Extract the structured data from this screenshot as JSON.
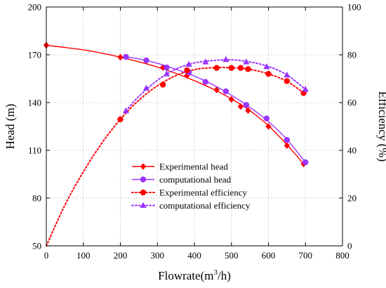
{
  "chart_data": {
    "type": "line",
    "xlabel_base": "Flowrate(m",
    "xlabel_sup": "3",
    "xlabel_tail": "/h)",
    "ylabel_left": "Head (m)",
    "ylabel_right": "Efficiency (%)",
    "xlim": [
      0,
      800
    ],
    "ylim_left": [
      50,
      200
    ],
    "ylim_right": [
      0,
      100
    ],
    "x_ticks": [
      "0",
      "100",
      "200",
      "300",
      "400",
      "500",
      "600",
      "700",
      "800"
    ],
    "y_left_ticks": [
      "50",
      "80",
      "110",
      "140",
      "170",
      "200"
    ],
    "y_right_ticks": [
      "0",
      "20",
      "40",
      "60",
      "80",
      "100"
    ],
    "grid": true,
    "legend_position": "center-bottom",
    "series": [
      {
        "name": "Experimental head",
        "axis": "left",
        "color": "#ff0000",
        "marker": "diamond",
        "line": "solid",
        "points": [
          [
            0,
            176
          ],
          [
            200,
            168.5
          ],
          [
            315,
            162
          ],
          [
            380,
            157
          ],
          [
            460,
            148
          ],
          [
            500,
            142
          ],
          [
            525,
            137.5
          ],
          [
            545,
            135
          ],
          [
            600,
            125
          ],
          [
            650,
            113
          ],
          [
            695,
            101.5
          ]
        ],
        "curve": [
          [
            0,
            176
          ],
          [
            50,
            174.6
          ],
          [
            100,
            173.1
          ],
          [
            150,
            171
          ],
          [
            200,
            168.5
          ],
          [
            250,
            165.6
          ],
          [
            300,
            162.3
          ],
          [
            350,
            158.3
          ],
          [
            400,
            153.7
          ],
          [
            450,
            148.5
          ],
          [
            500,
            142.3
          ],
          [
            550,
            134.9
          ],
          [
            600,
            125.5
          ],
          [
            650,
            113.5
          ],
          [
            695,
            101.5
          ]
        ]
      },
      {
        "name": "computational head",
        "axis": "left",
        "color": "#9933ff",
        "marker": "circle",
        "line": "solid",
        "points": [
          [
            215,
            168.7
          ],
          [
            270,
            166.5
          ],
          [
            325,
            162
          ],
          [
            385,
            159
          ],
          [
            430,
            153
          ],
          [
            485,
            147
          ],
          [
            540,
            138.5
          ],
          [
            595,
            130
          ],
          [
            650,
            116.5
          ],
          [
            700,
            102.5
          ]
        ],
        "curve": [
          [
            215,
            168.7
          ],
          [
            250,
            167.4
          ],
          [
            300,
            164.7
          ],
          [
            350,
            160.9
          ],
          [
            400,
            156.6
          ],
          [
            450,
            151.2
          ],
          [
            500,
            144.6
          ],
          [
            550,
            137
          ],
          [
            600,
            128.1
          ],
          [
            650,
            116.8
          ],
          [
            700,
            102.5
          ]
        ]
      },
      {
        "name": "Experimental efficiency",
        "axis": "right",
        "color": "#ff0000",
        "marker": "circle",
        "line": "dotted",
        "points": [
          [
            200,
            53
          ],
          [
            315,
            67.5
          ],
          [
            380,
            73.5
          ],
          [
            460,
            74.5
          ],
          [
            500,
            74.5
          ],
          [
            525,
            74.5
          ],
          [
            545,
            74
          ],
          [
            600,
            72
          ],
          [
            650,
            69
          ],
          [
            695,
            64
          ]
        ],
        "curve": [
          [
            0,
            0
          ],
          [
            50,
            17
          ],
          [
            100,
            31
          ],
          [
            150,
            43
          ],
          [
            200,
            53
          ],
          [
            250,
            61
          ],
          [
            300,
            67
          ],
          [
            350,
            71.3
          ],
          [
            400,
            73.8
          ],
          [
            450,
            74.6
          ],
          [
            500,
            74.6
          ],
          [
            550,
            73.9
          ],
          [
            600,
            72
          ],
          [
            650,
            68.9
          ],
          [
            695,
            64
          ]
        ]
      },
      {
        "name": "computational efficiency",
        "axis": "right",
        "color": "#9933ff",
        "marker": "triangle",
        "line": "dotted",
        "points": [
          [
            215,
            56.5
          ],
          [
            270,
            66
          ],
          [
            325,
            72
          ],
          [
            385,
            76
          ],
          [
            430,
            77
          ],
          [
            485,
            78
          ],
          [
            540,
            77
          ],
          [
            595,
            75
          ],
          [
            650,
            71.5
          ],
          [
            700,
            65.5
          ]
        ],
        "curve": [
          [
            215,
            56.5
          ],
          [
            250,
            62.6
          ],
          [
            300,
            69.3
          ],
          [
            350,
            74
          ],
          [
            400,
            76.6
          ],
          [
            450,
            77.6
          ],
          [
            500,
            77.9
          ],
          [
            550,
            77
          ],
          [
            600,
            75.1
          ],
          [
            650,
            71.6
          ],
          [
            700,
            65.5
          ]
        ]
      }
    ]
  }
}
